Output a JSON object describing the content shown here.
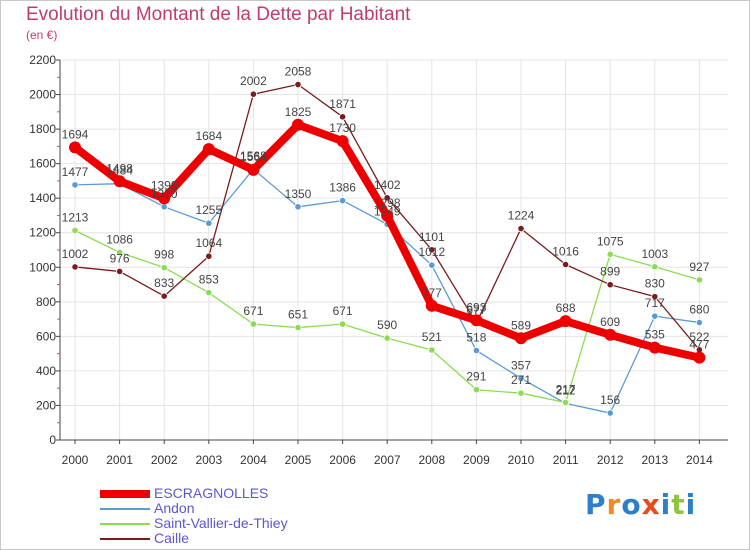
{
  "title": "Evolution du Montant de la Dette par Habitant",
  "subtitle": "(en €)",
  "logo_text": "Proxiti",
  "logo_colors": [
    "#2c7fc9",
    "#f08a24",
    "#2c7fc9",
    "#e84c1e",
    "#2c7fc9",
    "#8cc63f",
    "#2c7fc9"
  ],
  "chart_data": {
    "type": "line",
    "x": [
      "2000",
      "2001",
      "2002",
      "2003",
      "2004",
      "2005",
      "2006",
      "2007",
      "2008",
      "2009",
      "2010",
      "2011",
      "2012",
      "2013",
      "2014"
    ],
    "ylim": [
      0,
      2200
    ],
    "yticks": [
      0,
      200,
      400,
      600,
      800,
      1000,
      1200,
      1400,
      1600,
      1800,
      2000,
      2200
    ],
    "grid": true,
    "legend_position": "bottom-left",
    "series": [
      {
        "name": "ESCRAGNOLLES",
        "color": "#ee0000",
        "width": 8,
        "marker": 6,
        "values": [
          1694,
          1498,
          1399,
          1684,
          1564,
          1825,
          1730,
          1298,
          777,
          693,
          589,
          688,
          609,
          535,
          477
        ]
      },
      {
        "name": "Andon",
        "color": "#5b9bd5",
        "width": 1.3,
        "marker": 3.2,
        "values": [
          1477,
          1484,
          1350,
          1255,
          1568,
          1350,
          1386,
          1249,
          1012,
          518,
          357,
          212,
          156,
          717,
          680
        ]
      },
      {
        "name": "Saint-Vallier-de-Thiey",
        "color": "#8bdc52",
        "width": 1.3,
        "marker": 3.2,
        "values": [
          1213,
          1086,
          998,
          853,
          671,
          651,
          671,
          590,
          521,
          291,
          271,
          217,
          1075,
          1003,
          927
        ]
      },
      {
        "name": "Caille",
        "color": "#7a1c1c",
        "width": 1.3,
        "marker": 3.2,
        "values": [
          1002,
          976,
          833,
          1064,
          2002,
          2058,
          1871,
          1402,
          1101,
          677,
          1224,
          1016,
          899,
          830,
          522
        ]
      }
    ]
  }
}
